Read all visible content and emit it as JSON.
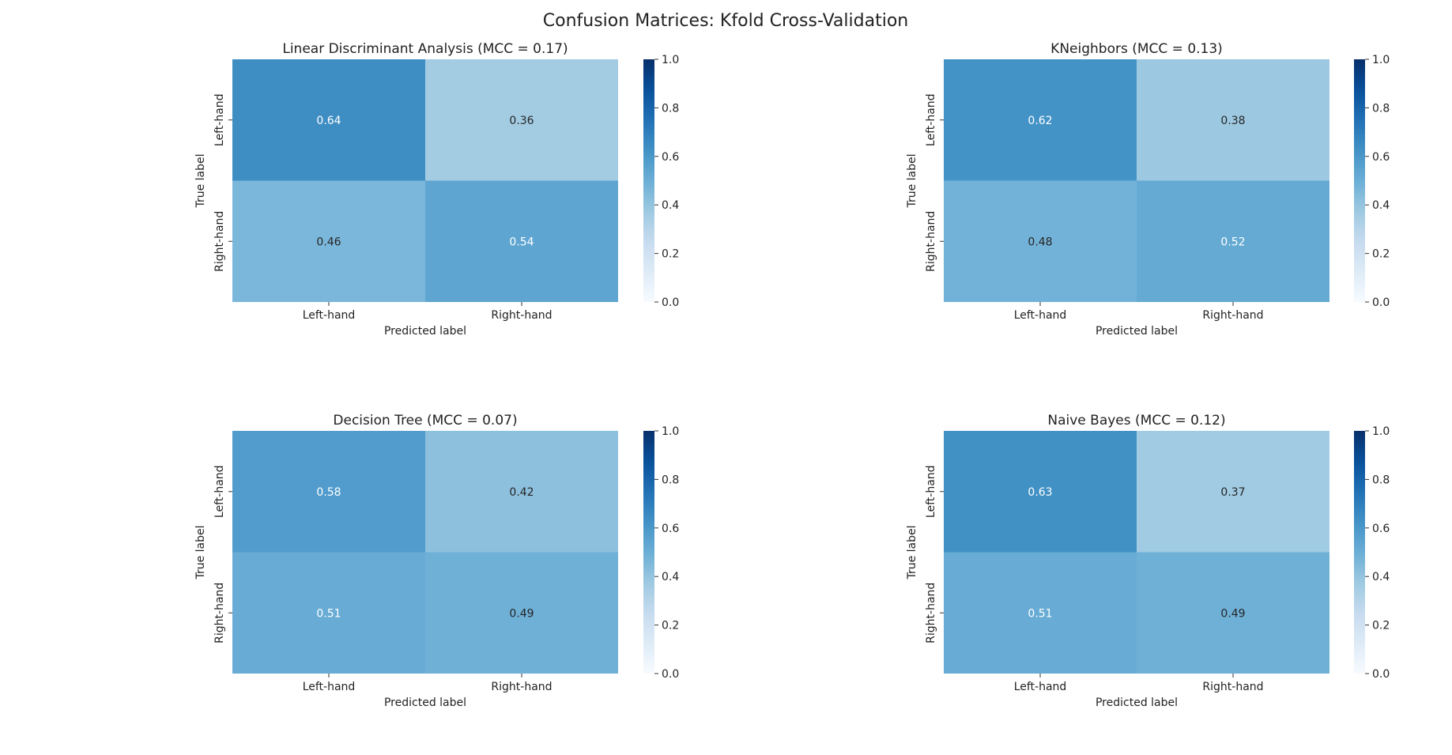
{
  "figure": {
    "title": "Confusion Matrices: Kfold Cross-Validation"
  },
  "colormap": {
    "name": "Blues",
    "stops": [
      "#f7fbff",
      "#deebf7",
      "#c6dbef",
      "#9ecae1",
      "#6baed6",
      "#4292c6",
      "#2171b5",
      "#08519c",
      "#08306b"
    ]
  },
  "chart_data": [
    {
      "type": "heatmap",
      "title": "Linear Discriminant Analysis (MCC = 0.17)",
      "xlabel": "Predicted label",
      "ylabel": "True label",
      "x_categories": [
        "Left-hand",
        "Right-hand"
      ],
      "y_categories": [
        "Left-hand",
        "Right-hand"
      ],
      "values": [
        [
          0.64,
          0.36
        ],
        [
          0.46,
          0.54
        ]
      ],
      "colorbar": {
        "range": [
          0.0,
          1.0
        ],
        "ticks": [
          "0.0",
          "0.2",
          "0.4",
          "0.6",
          "0.8",
          "1.0"
        ]
      }
    },
    {
      "type": "heatmap",
      "title": "KNeighbors (MCC = 0.13)",
      "xlabel": "Predicted label",
      "ylabel": "True label",
      "x_categories": [
        "Left-hand",
        "Right-hand"
      ],
      "y_categories": [
        "Left-hand",
        "Right-hand"
      ],
      "values": [
        [
          0.62,
          0.38
        ],
        [
          0.48,
          0.52
        ]
      ],
      "colorbar": {
        "range": [
          0.0,
          1.0
        ],
        "ticks": [
          "0.0",
          "0.2",
          "0.4",
          "0.6",
          "0.8",
          "1.0"
        ]
      }
    },
    {
      "type": "heatmap",
      "title": "Decision Tree (MCC = 0.07)",
      "xlabel": "Predicted label",
      "ylabel": "True label",
      "x_categories": [
        "Left-hand",
        "Right-hand"
      ],
      "y_categories": [
        "Left-hand",
        "Right-hand"
      ],
      "values": [
        [
          0.58,
          0.42
        ],
        [
          0.51,
          0.49
        ]
      ],
      "colorbar": {
        "range": [
          0.0,
          1.0
        ],
        "ticks": [
          "0.0",
          "0.2",
          "0.4",
          "0.6",
          "0.8",
          "1.0"
        ]
      }
    },
    {
      "type": "heatmap",
      "title": "Naive Bayes (MCC = 0.12)",
      "xlabel": "Predicted label",
      "ylabel": "True label",
      "x_categories": [
        "Left-hand",
        "Right-hand"
      ],
      "y_categories": [
        "Left-hand",
        "Right-hand"
      ],
      "values": [
        [
          0.63,
          0.37
        ],
        [
          0.51,
          0.49
        ]
      ],
      "colorbar": {
        "range": [
          0.0,
          1.0
        ],
        "ticks": [
          "0.0",
          "0.2",
          "0.4",
          "0.6",
          "0.8",
          "1.0"
        ]
      }
    }
  ]
}
